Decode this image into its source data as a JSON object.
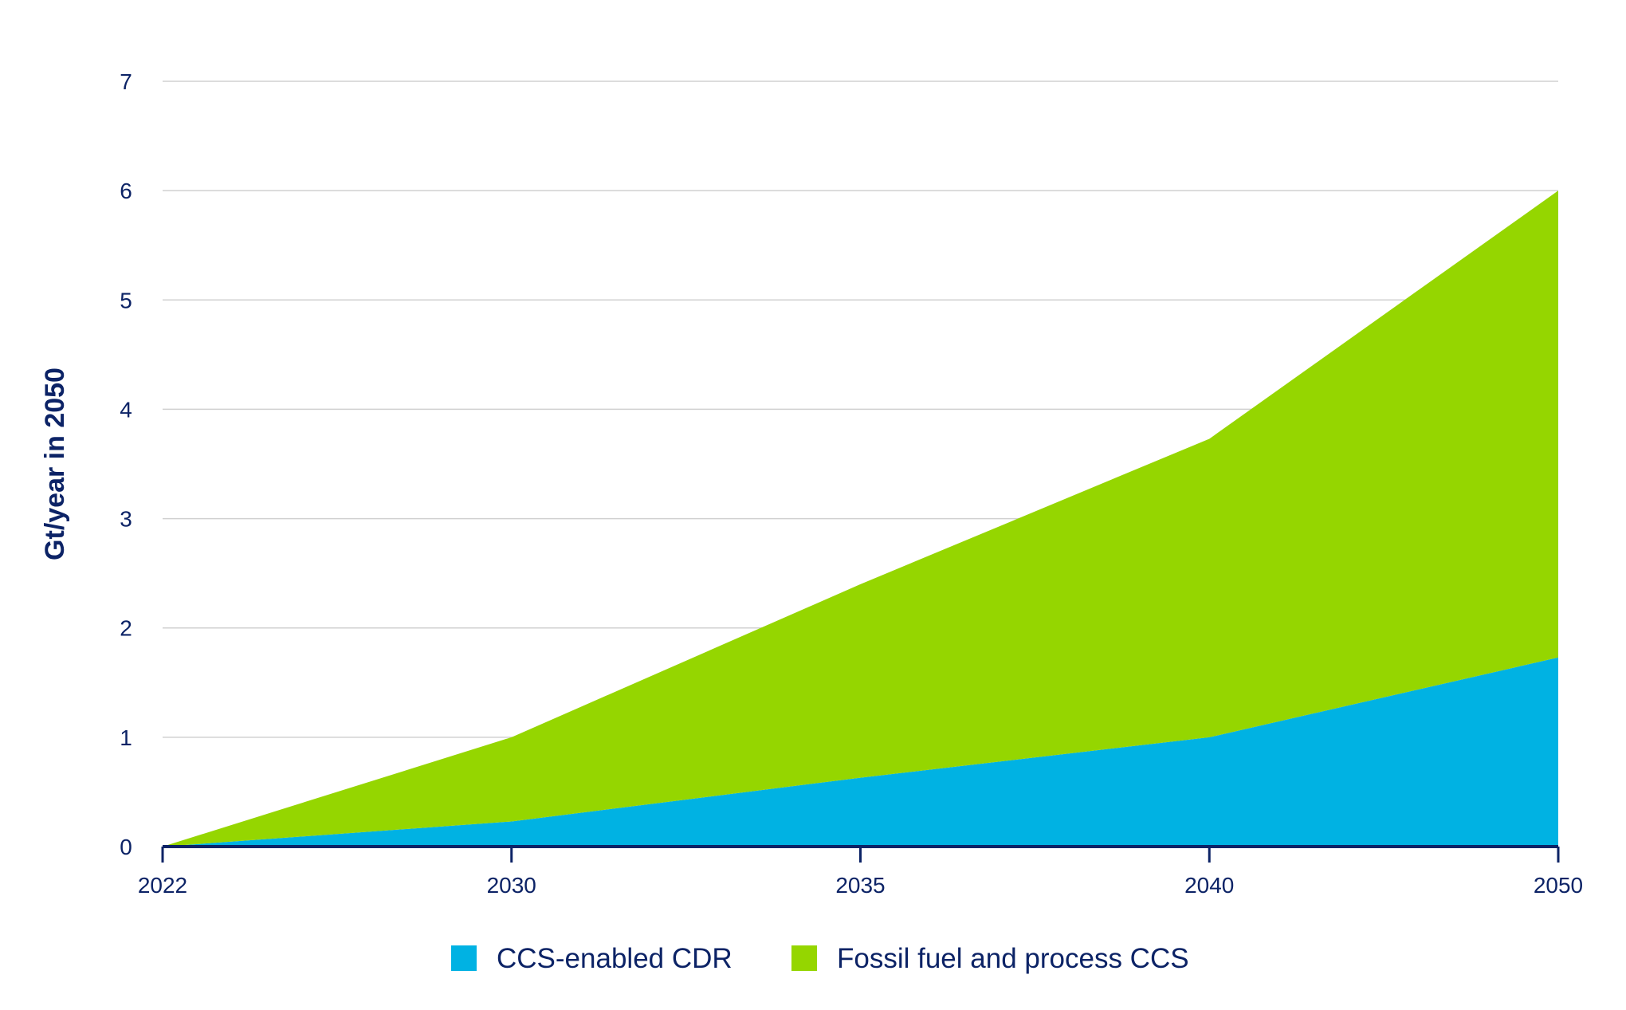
{
  "chart_data": {
    "type": "area",
    "stacked": true,
    "title": "",
    "xlabel": "",
    "ylabel": "Gt/year in 2050",
    "categories": [
      "2022",
      "2030",
      "2035",
      "2040",
      "2050"
    ],
    "ylim": [
      0,
      7
    ],
    "yticks": [
      "0",
      "1",
      "2",
      "3",
      "4",
      "5",
      "6",
      "7"
    ],
    "grid": true,
    "legend_position": "bottom",
    "series": [
      {
        "name": "CCS-enabled CDR",
        "values": [
          0,
          0.23,
          0.63,
          1.0,
          1.73
        ],
        "color": "#00b2e3"
      },
      {
        "name": "Fossil fuel and process CCS",
        "values": [
          0,
          0.77,
          1.77,
          2.73,
          4.27
        ],
        "color": "#95d600"
      }
    ],
    "axis_color": "#0c2366",
    "grid_color": "#d0d0d0"
  }
}
